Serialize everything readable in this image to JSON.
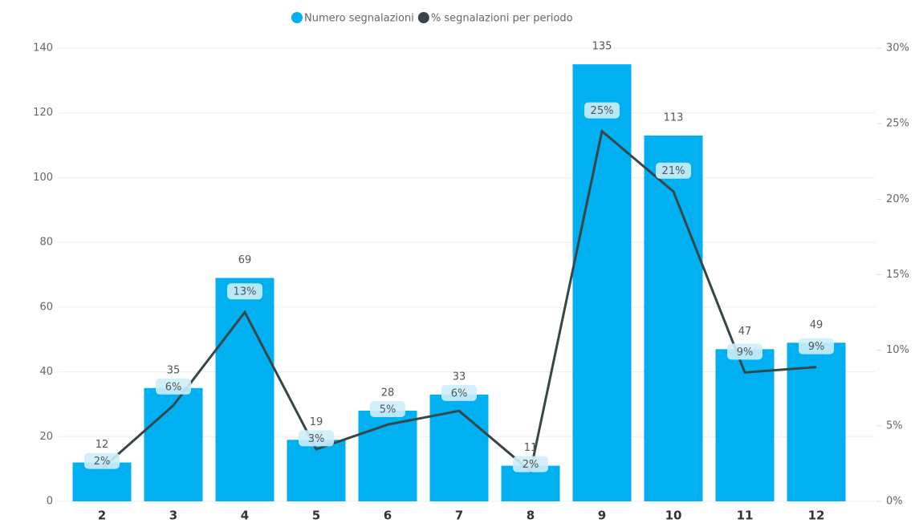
{
  "chart_data": {
    "type": "combo",
    "categories": [
      "2",
      "3",
      "4",
      "5",
      "6",
      "7",
      "8",
      "9",
      "10",
      "11",
      "12"
    ],
    "series": [
      {
        "name": "Numero segnalazioni",
        "color": "#00B0F0",
        "kind": "bar",
        "axis": "y",
        "values": [
          12,
          35,
          69,
          19,
          28,
          33,
          11,
          135,
          113,
          47,
          49
        ]
      },
      {
        "name": "% segnalazioni per periodo",
        "color": "#374649",
        "kind": "line",
        "axis": "y2",
        "values": [
          2.18,
          6.35,
          12.52,
          3.45,
          5.08,
          5.99,
          2.0,
          24.5,
          20.51,
          8.53,
          8.89
        ],
        "value_labels": [
          "2%",
          "6%",
          "13%",
          "3%",
          "5%",
          "6%",
          "2%",
          "25%",
          "21%",
          "9%",
          "9%"
        ]
      }
    ],
    "ylim": [
      0,
      140
    ],
    "yticks": [
      0,
      20,
      40,
      60,
      80,
      100,
      120,
      140
    ],
    "y2lim": [
      0,
      30
    ],
    "y2ticks": [
      {
        "value": 0,
        "label": "0%"
      },
      {
        "value": 5,
        "label": "5%"
      },
      {
        "value": 10,
        "label": "10%"
      },
      {
        "value": 15,
        "label": "15%"
      },
      {
        "value": 20,
        "label": "20%"
      },
      {
        "value": 25,
        "label": "25%"
      },
      {
        "value": 30,
        "label": "30%"
      }
    ],
    "grid": true,
    "legend": "top"
  }
}
